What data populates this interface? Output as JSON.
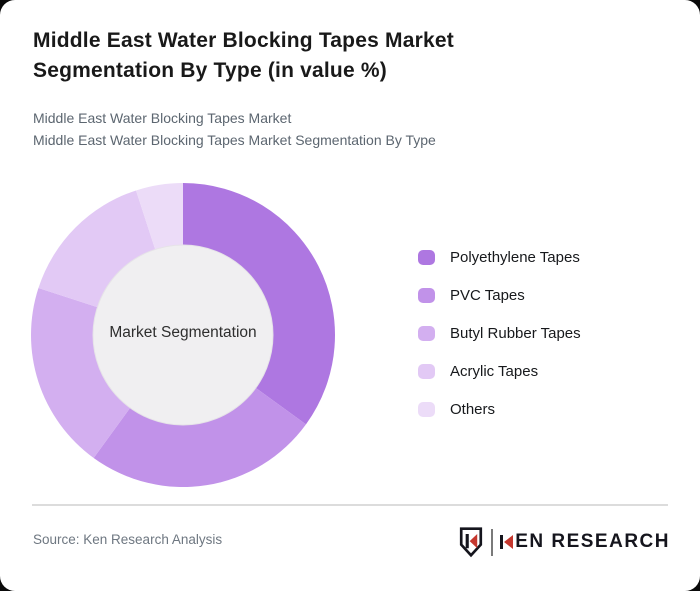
{
  "page": {
    "title": "Middle East Water Blocking Tapes Market Segmentation By Type (in value %)",
    "subtitles": [
      "Middle East Water Blocking Tapes Market",
      "Middle East Water Blocking Tapes Market Segmentation By Type"
    ]
  },
  "chart_data": {
    "type": "pie",
    "subtype": "donut",
    "title": "Middle East Water Blocking Tapes Market Segmentation By Type (in value %)",
    "unit": "value %",
    "center_label": "Market Segmentation",
    "categories": [
      "Polyethylene Tapes",
      "PVC Tapes",
      "Butyl Rubber Tapes",
      "Acrylic Tapes",
      "Others"
    ],
    "values": [
      35,
      25,
      20,
      15,
      5
    ],
    "colors": [
      "#ae77e1",
      "#c192e9",
      "#d3aff0",
      "#e2c9f5",
      "#ecdcf8"
    ],
    "start_angle_deg": 0,
    "direction": "clockwise",
    "inner_radius_ratio": 0.59,
    "inner_circle_color": "#f0eff1",
    "legend_position": "right",
    "data_labels_shown": false
  },
  "footer": {
    "source": "Source: Ken Research Analysis",
    "logo": {
      "text": "KEN RESEARCH",
      "accent_color": "#c5372e",
      "ink_color": "#15151d"
    }
  }
}
